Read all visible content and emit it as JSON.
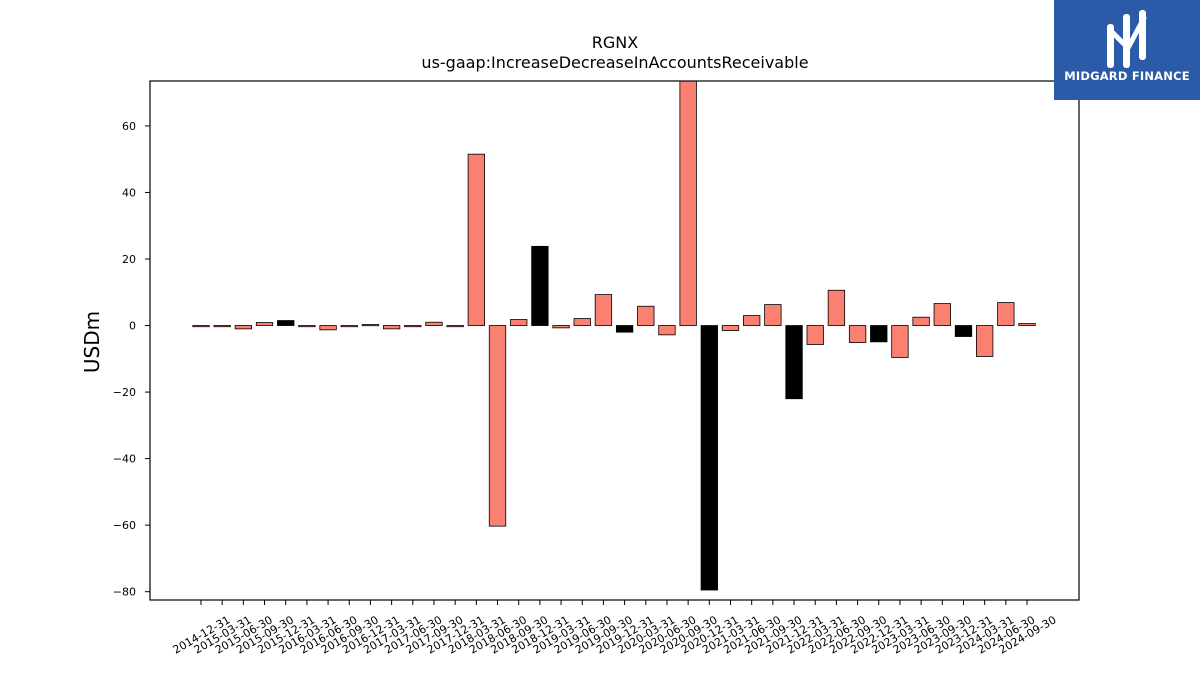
{
  "brand": {
    "name": "MIDGARD FINANCE",
    "bg_color": "#2b5aa8"
  },
  "chart_data": {
    "type": "bar",
    "title": "RGNX",
    "subtitle": "us-gaap:IncreaseDecreaseInAccountsReceivable",
    "xlabel": "",
    "ylabel": "USDm",
    "ylim": [
      -82.5,
      73.5
    ],
    "yticks": [
      -80,
      -60,
      -40,
      -20,
      0,
      20,
      40,
      60
    ],
    "grid": false,
    "positive_color": "#fa8072",
    "negative_color": "#fa8072",
    "highlight_color": "#000000",
    "categories": [
      "2014-12-31",
      "2015-03-31",
      "2015-06-30",
      "2015-09-30",
      "2015-12-31",
      "2016-03-31",
      "2016-06-30",
      "2016-09-30",
      "2016-12-31",
      "2017-03-31",
      "2017-06-30",
      "2017-09-30",
      "2017-12-31",
      "2018-03-31",
      "2018-06-30",
      "2018-09-30",
      "2018-12-31",
      "2019-03-31",
      "2019-06-30",
      "2019-09-30",
      "2019-12-31",
      "2020-03-31",
      "2020-06-30",
      "2020-09-30",
      "2020-12-31",
      "2021-03-31",
      "2021-06-30",
      "2021-09-30",
      "2021-12-31",
      "2022-03-31",
      "2022-06-30",
      "2022-09-30",
      "2022-12-31",
      "2023-03-31",
      "2023-06-30",
      "2023-09-30",
      "2023-12-31",
      "2024-03-31",
      "2024-06-30",
      "2024-09-30"
    ],
    "values": [
      -0.3,
      -0.2,
      -1.0,
      0.9,
      1.5,
      -0.1,
      -1.3,
      -0.1,
      0.3,
      -1.0,
      -0.3,
      1.0,
      -0.3,
      51.5,
      -60.3,
      1.8,
      23.8,
      -0.7,
      2.1,
      9.3,
      -2.0,
      5.8,
      -2.8,
      78.0,
      -79.5,
      -1.5,
      3.0,
      6.3,
      -22.0,
      -5.7,
      10.6,
      -5.1,
      -4.9,
      -9.6,
      2.5,
      6.6,
      -3.3,
      -9.3,
      6.9,
      0.6
    ],
    "highlighted": [
      false,
      false,
      false,
      false,
      true,
      false,
      false,
      false,
      false,
      false,
      false,
      false,
      false,
      false,
      false,
      false,
      true,
      false,
      false,
      false,
      true,
      false,
      false,
      false,
      true,
      false,
      false,
      false,
      true,
      false,
      false,
      false,
      true,
      false,
      false,
      false,
      true,
      false,
      false,
      false
    ]
  }
}
